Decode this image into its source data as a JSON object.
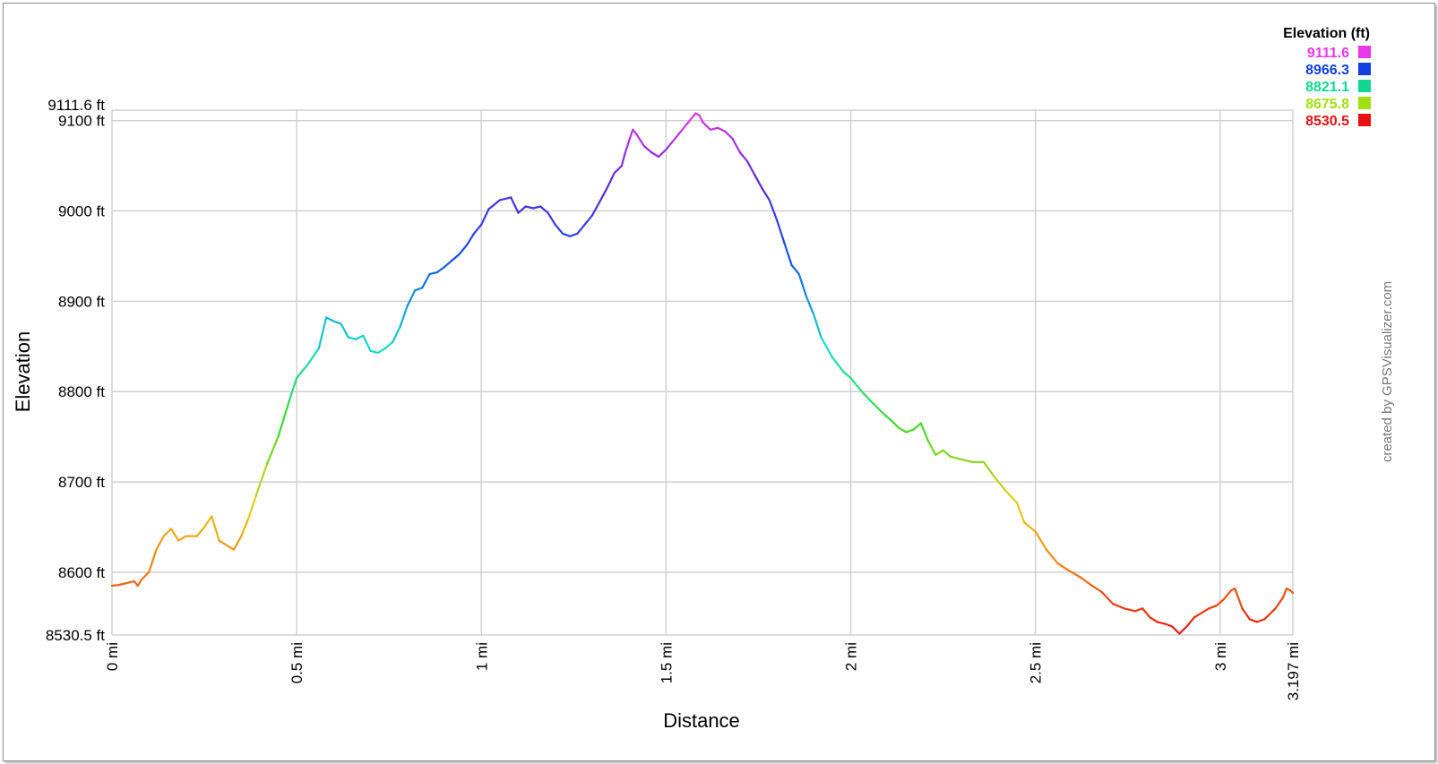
{
  "chart_data": {
    "type": "line",
    "xlabel": "Distance",
    "ylabel": "Elevation",
    "x_unit": "mi",
    "y_unit": "ft",
    "xlim": [
      0,
      3.197
    ],
    "ylim": [
      8530.5,
      9111.6
    ],
    "x_ticks": [
      {
        "value": 0,
        "label": "0 mi"
      },
      {
        "value": 0.5,
        "label": "0.5 mi"
      },
      {
        "value": 1,
        "label": "1 mi"
      },
      {
        "value": 1.5,
        "label": "1.5 mi"
      },
      {
        "value": 2,
        "label": "2 mi"
      },
      {
        "value": 2.5,
        "label": "2.5 mi"
      },
      {
        "value": 3,
        "label": "3 mi"
      },
      {
        "value": 3.197,
        "label": "3.197 mi"
      }
    ],
    "y_ticks": [
      {
        "value": 8530.5,
        "label": "8530.5 ft"
      },
      {
        "value": 8600,
        "label": "8600 ft"
      },
      {
        "value": 8700,
        "label": "8700 ft"
      },
      {
        "value": 8800,
        "label": "8800 ft"
      },
      {
        "value": 8900,
        "label": "8900 ft"
      },
      {
        "value": 9000,
        "label": "9000 ft"
      },
      {
        "value": 9100,
        "label": "9100 ft"
      },
      {
        "value": 9111.6,
        "label": "9111.6 ft"
      }
    ],
    "grid": true,
    "legend": {
      "title": "Elevation (ft)",
      "placement": "top-right",
      "entries": [
        {
          "label": "9111.6",
          "color": "#e838e8"
        },
        {
          "label": "8966.3",
          "color": "#1040e0"
        },
        {
          "label": "8821.1",
          "color": "#10d890"
        },
        {
          "label": "8675.8",
          "color": "#a0e010"
        },
        {
          "label": "8530.5",
          "color": "#e81010"
        }
      ]
    },
    "series": [
      {
        "color_scale": "elevation",
        "points": [
          [
            0,
            8585
          ],
          [
            0.02,
            8586
          ],
          [
            0.04,
            8588
          ],
          [
            0.06,
            8590
          ],
          [
            0.07,
            8585
          ],
          [
            0.08,
            8592
          ],
          [
            0.1,
            8600
          ],
          [
            0.12,
            8625
          ],
          [
            0.14,
            8640
          ],
          [
            0.16,
            8648
          ],
          [
            0.18,
            8635
          ],
          [
            0.2,
            8640
          ],
          [
            0.23,
            8640
          ],
          [
            0.25,
            8650
          ],
          [
            0.27,
            8662
          ],
          [
            0.29,
            8635
          ],
          [
            0.31,
            8630
          ],
          [
            0.33,
            8625
          ],
          [
            0.35,
            8640
          ],
          [
            0.37,
            8660
          ],
          [
            0.39,
            8685
          ],
          [
            0.42,
            8720
          ],
          [
            0.45,
            8750
          ],
          [
            0.48,
            8790
          ],
          [
            0.5,
            8815
          ],
          [
            0.53,
            8830
          ],
          [
            0.56,
            8848
          ],
          [
            0.58,
            8882
          ],
          [
            0.6,
            8878
          ],
          [
            0.62,
            8875
          ],
          [
            0.64,
            8860
          ],
          [
            0.66,
            8858
          ],
          [
            0.68,
            8862
          ],
          [
            0.7,
            8845
          ],
          [
            0.72,
            8843
          ],
          [
            0.74,
            8848
          ],
          [
            0.76,
            8855
          ],
          [
            0.78,
            8872
          ],
          [
            0.8,
            8895
          ],
          [
            0.82,
            8912
          ],
          [
            0.84,
            8915
          ],
          [
            0.86,
            8930
          ],
          [
            0.88,
            8932
          ],
          [
            0.9,
            8938
          ],
          [
            0.92,
            8945
          ],
          [
            0.94,
            8952
          ],
          [
            0.96,
            8962
          ],
          [
            0.98,
            8975
          ],
          [
            1.0,
            8985
          ],
          [
            1.02,
            9002
          ],
          [
            1.05,
            9012
          ],
          [
            1.08,
            9015
          ],
          [
            1.1,
            8998
          ],
          [
            1.12,
            9005
          ],
          [
            1.14,
            9003
          ],
          [
            1.16,
            9005
          ],
          [
            1.18,
            8998
          ],
          [
            1.2,
            8985
          ],
          [
            1.22,
            8975
          ],
          [
            1.24,
            8972
          ],
          [
            1.26,
            8975
          ],
          [
            1.28,
            8985
          ],
          [
            1.3,
            8995
          ],
          [
            1.32,
            9010
          ],
          [
            1.34,
            9025
          ],
          [
            1.36,
            9042
          ],
          [
            1.38,
            9050
          ],
          [
            1.39,
            9065
          ],
          [
            1.4,
            9078
          ],
          [
            1.41,
            9090
          ],
          [
            1.42,
            9085
          ],
          [
            1.44,
            9072
          ],
          [
            1.46,
            9065
          ],
          [
            1.48,
            9060
          ],
          [
            1.5,
            9068
          ],
          [
            1.52,
            9078
          ],
          [
            1.54,
            9088
          ],
          [
            1.56,
            9098
          ],
          [
            1.58,
            9108
          ],
          [
            1.59,
            9106
          ],
          [
            1.6,
            9098
          ],
          [
            1.62,
            9090
          ],
          [
            1.64,
            9092
          ],
          [
            1.66,
            9088
          ],
          [
            1.68,
            9080
          ],
          [
            1.7,
            9065
          ],
          [
            1.72,
            9055
          ],
          [
            1.74,
            9040
          ],
          [
            1.76,
            9025
          ],
          [
            1.78,
            9012
          ],
          [
            1.8,
            8990
          ],
          [
            1.82,
            8965
          ],
          [
            1.84,
            8940
          ],
          [
            1.86,
            8930
          ],
          [
            1.88,
            8905
          ],
          [
            1.9,
            8885
          ],
          [
            1.92,
            8860
          ],
          [
            1.95,
            8838
          ],
          [
            1.98,
            8822
          ],
          [
            2.0,
            8815
          ],
          [
            2.03,
            8800
          ],
          [
            2.06,
            8787
          ],
          [
            2.09,
            8775
          ],
          [
            2.11,
            8768
          ],
          [
            2.13,
            8760
          ],
          [
            2.15,
            8755
          ],
          [
            2.17,
            8758
          ],
          [
            2.19,
            8765
          ],
          [
            2.21,
            8745
          ],
          [
            2.23,
            8730
          ],
          [
            2.25,
            8735
          ],
          [
            2.27,
            8728
          ],
          [
            2.3,
            8725
          ],
          [
            2.33,
            8722
          ],
          [
            2.36,
            8722
          ],
          [
            2.39,
            8705
          ],
          [
            2.42,
            8690
          ],
          [
            2.45,
            8677
          ],
          [
            2.47,
            8655
          ],
          [
            2.5,
            8645
          ],
          [
            2.53,
            8625
          ],
          [
            2.56,
            8610
          ],
          [
            2.59,
            8602
          ],
          [
            2.62,
            8595
          ],
          [
            2.65,
            8586
          ],
          [
            2.68,
            8578
          ],
          [
            2.71,
            8565
          ],
          [
            2.74,
            8560
          ],
          [
            2.77,
            8557
          ],
          [
            2.79,
            8560
          ],
          [
            2.81,
            8550
          ],
          [
            2.83,
            8545
          ],
          [
            2.85,
            8543
          ],
          [
            2.87,
            8540
          ],
          [
            2.89,
            8532
          ],
          [
            2.91,
            8540
          ],
          [
            2.93,
            8550
          ],
          [
            2.95,
            8555
          ],
          [
            2.97,
            8560
          ],
          [
            2.99,
            8563
          ],
          [
            3.01,
            8570
          ],
          [
            3.03,
            8580
          ],
          [
            3.04,
            8582
          ],
          [
            3.06,
            8560
          ],
          [
            3.08,
            8548
          ],
          [
            3.1,
            8545
          ],
          [
            3.12,
            8548
          ],
          [
            3.15,
            8560
          ],
          [
            3.17,
            8572
          ],
          [
            3.18,
            8582
          ],
          [
            3.19,
            8580
          ],
          [
            3.197,
            8577
          ]
        ]
      }
    ],
    "credit": "created by GPSVisualizer.com"
  }
}
